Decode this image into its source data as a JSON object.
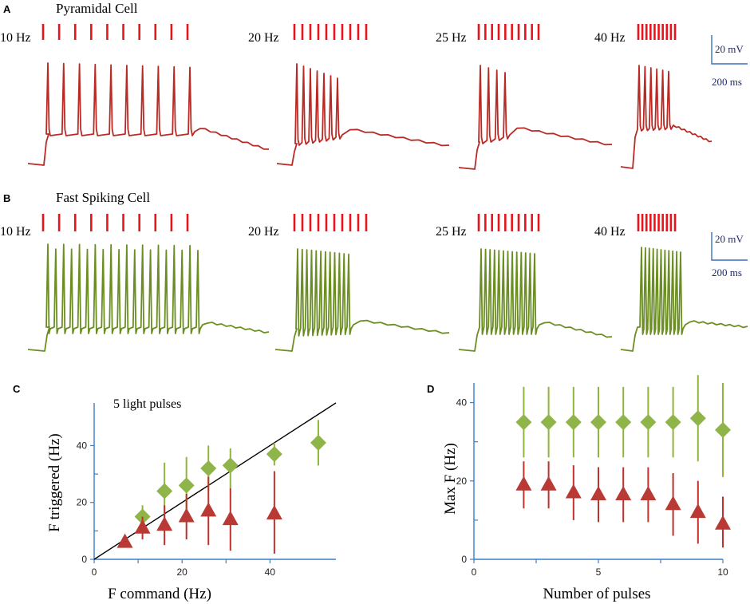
{
  "colors": {
    "pyramidal": "#b92a24",
    "fast_spiking": "#6b8e23",
    "pulse": "#e8141b",
    "scale": "#3a6fbf",
    "axis": "#3a7fc4",
    "diamond": "#8fb44a",
    "diamond_err": "#8fb53a",
    "triangle": "#b93a35",
    "triangle_err": "#c0302c",
    "identity": "#000000"
  },
  "panels": {
    "A": {
      "letter": "A",
      "title": "Pyramidal Cell",
      "frequencies": [
        "10 Hz",
        "20 Hz",
        "25 Hz",
        "40 Hz"
      ],
      "pulse_counts": [
        10,
        10,
        10,
        10
      ],
      "spike_counts": [
        10,
        7,
        4,
        6
      ],
      "scale_v": "20 mV",
      "scale_t": "200 ms"
    },
    "B": {
      "letter": "B",
      "title": "Fast Spiking Cell",
      "frequencies": [
        "10 Hz",
        "20 Hz",
        "25 Hz",
        "40 Hz"
      ],
      "pulse_counts": [
        10,
        10,
        10,
        10
      ],
      "spike_counts": [
        20,
        12,
        13,
        11
      ],
      "scale_v": "20 mV",
      "scale_t": "200 ms"
    }
  },
  "chart_data": [
    {
      "panel": "C",
      "type": "scatter",
      "annotation": "5 light pulses",
      "xlabel": "F command (Hz)",
      "ylabel": "F triggered (Hz)",
      "xlim": [
        0,
        55
      ],
      "ylim": [
        0,
        55
      ],
      "xticks": [
        0,
        20,
        40
      ],
      "yticks": [
        0,
        20,
        40
      ],
      "identity_line": true,
      "series": [
        {
          "name": "Fast Spiking Cell",
          "marker": "diamond",
          "x": [
            11,
            16,
            21,
            26,
            31,
            41,
            51
          ],
          "y": [
            15,
            24,
            26,
            32,
            33,
            37,
            41
          ],
          "err_low": [
            4,
            10,
            10,
            8,
            8,
            4,
            8
          ],
          "err_high": [
            4,
            10,
            10,
            8,
            6,
            4,
            8
          ]
        },
        {
          "name": "Pyramidal Cell",
          "marker": "triangle",
          "x": [
            7,
            11,
            16,
            21,
            26,
            31,
            41
          ],
          "y": [
            6,
            11,
            12,
            15,
            17,
            14,
            16
          ],
          "err_low": [
            1,
            4,
            7,
            8,
            12,
            11,
            14
          ],
          "err_high": [
            1,
            4,
            7,
            8,
            12,
            11,
            15
          ]
        }
      ]
    },
    {
      "panel": "D",
      "type": "scatter",
      "xlabel": "Number of pulses",
      "ylabel": "Max F (Hz)",
      "xlim": [
        0,
        10
      ],
      "ylim": [
        0,
        45
      ],
      "xticks": [
        0,
        5,
        10
      ],
      "yticks": [
        0,
        20,
        40
      ],
      "series": [
        {
          "name": "Fast Spiking Cell",
          "marker": "diamond",
          "x": [
            2,
            3,
            4,
            5,
            6,
            7,
            8,
            9,
            10
          ],
          "y": [
            35,
            35,
            35,
            35,
            35,
            35,
            35,
            36,
            33
          ],
          "err_low": [
            9,
            9,
            9,
            9,
            9,
            9,
            9,
            11,
            12
          ],
          "err_high": [
            9,
            9,
            9,
            9,
            9,
            9,
            9,
            11,
            12
          ]
        },
        {
          "name": "Pyramidal Cell",
          "marker": "triangle",
          "x": [
            2,
            3,
            4,
            5,
            6,
            7,
            8,
            9,
            10
          ],
          "y": [
            19,
            19,
            17,
            16.5,
            16.5,
            16.5,
            14,
            12,
            9
          ],
          "err_low": [
            6,
            6,
            7,
            7,
            7,
            7,
            8,
            8,
            6
          ],
          "err_high": [
            6,
            6,
            7,
            7,
            7,
            7,
            8,
            8,
            7
          ]
        }
      ]
    }
  ]
}
